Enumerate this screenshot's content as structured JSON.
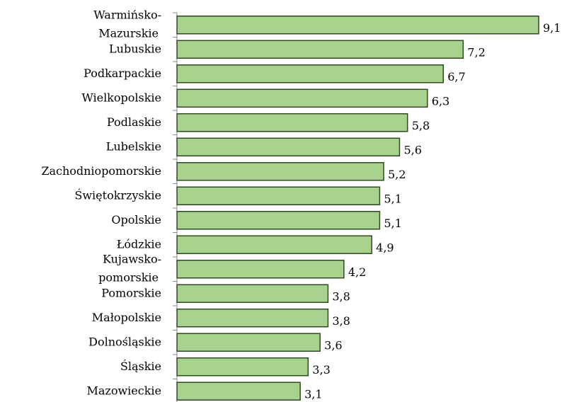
{
  "chart_data": {
    "type": "bar",
    "orientation": "horizontal",
    "categories": [
      "Warmińsko-Mazurskie",
      "Lubuskie",
      "Podkarpackie",
      "Wielkopolskie",
      "Podlaskie",
      "Lubelskie",
      "Zachodniopomorskie",
      "Świętokrzyskie",
      "Opolskie",
      "Łódzkie",
      "Kujawsko-pomorskie",
      "Pomorskie",
      "Małopolskie",
      "Dolnośląskie",
      "Śląskie",
      "Mazowieckie"
    ],
    "values": [
      9.1,
      7.2,
      6.7,
      6.3,
      5.8,
      5.6,
      5.2,
      5.1,
      5.1,
      4.9,
      4.2,
      3.8,
      3.8,
      3.6,
      3.3,
      3.1
    ],
    "value_labels": [
      "9,1",
      "7,2",
      "6,7",
      "6,3",
      "5,8",
      "5,6",
      "5,2",
      "5,1",
      "5,1",
      "4,9",
      "4,2",
      "3,8",
      "3,8",
      "3,6",
      "3,3",
      "3,1"
    ],
    "color": "#a9d18e"
  }
}
